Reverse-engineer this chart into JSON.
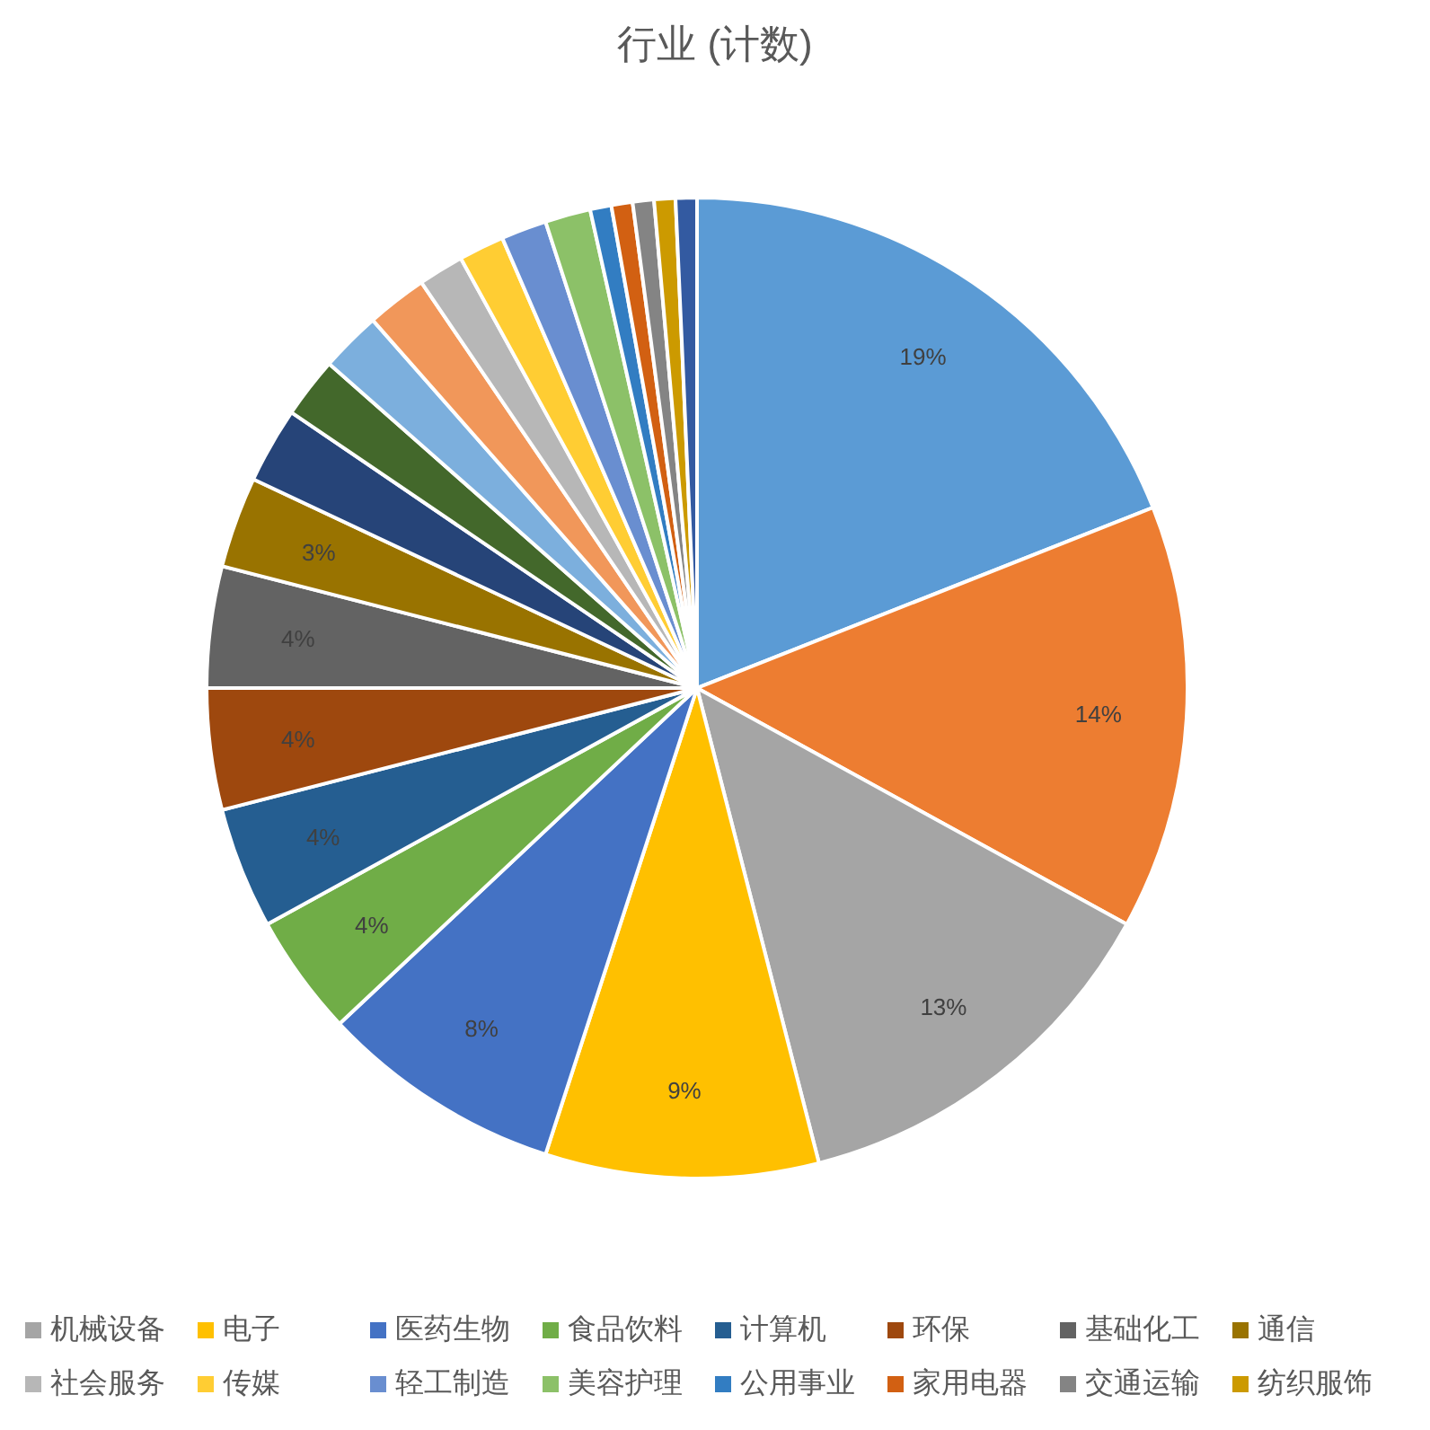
{
  "chart_data": {
    "type": "pie",
    "title": "行业 (计数)",
    "categories": [
      null,
      null,
      "机械设备",
      "电子",
      "医药生物",
      "食品饮料",
      "计算机",
      "环保",
      "基础化工",
      "通信",
      null,
      null,
      null,
      null,
      "社会服务",
      "传媒",
      "轻工制造",
      "美容护理",
      "公用事业",
      "家用电器",
      "交通运输",
      "纺织服饰",
      null
    ],
    "values": [
      19,
      14,
      13,
      9,
      8,
      4,
      4,
      4,
      4,
      3,
      2.5,
      2,
      2,
      2,
      1.5,
      1.5,
      1.5,
      1.5,
      0.7,
      0.7,
      0.7,
      0.7,
      0.7
    ],
    "colors": [
      "#5b9bd5",
      "#ed7d31",
      "#a5a5a5",
      "#ffc000",
      "#4472c4",
      "#70ad47",
      "#255e91",
      "#9e480e",
      "#636363",
      "#997300",
      "#264478",
      "#43682b",
      "#7cafdd",
      "#f1975a",
      "#b7b7b7",
      "#ffcd33",
      "#698ed0",
      "#8cc168",
      "#327dc2",
      "#d26012",
      "#848484",
      "#cc9a00",
      "#335aa1"
    ],
    "value_labels": [
      "19%",
      "14%",
      "13%",
      "9%",
      "8%",
      "4%",
      "4%",
      "4%",
      "4%",
      "3%",
      null,
      null,
      null,
      null,
      null,
      null,
      null,
      null,
      null,
      null,
      null,
      null,
      null
    ],
    "legend": "bottom"
  }
}
